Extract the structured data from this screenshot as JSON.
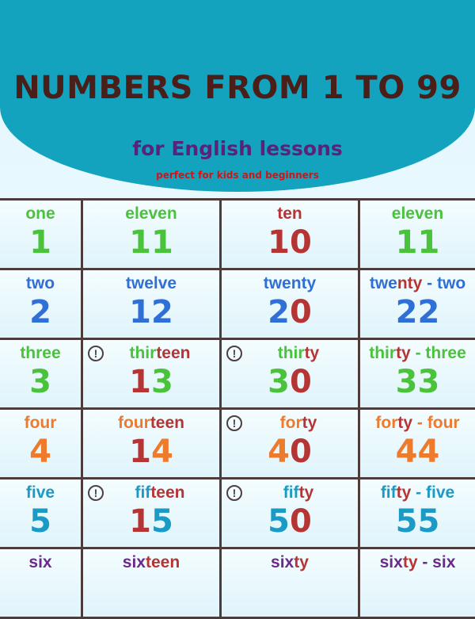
{
  "header": {
    "title": "NUMBERS FROM 1 TO 99",
    "subtitle": "for English lessons",
    "tagline": "perfect for kids and beginners"
  },
  "colors": {
    "banner": "#14a3bf",
    "b": "#2f6fd6",
    "g": "#4ac23c",
    "r": "#b53535",
    "o": "#ee7a2c",
    "t": "#1b9ac6",
    "p": "#6b2a8a",
    "warning_icon": "#4d4040"
  },
  "warning_icon": "exclamation-circle-icon",
  "rows": [
    [
      {
        "word": [
          [
            "one",
            "g"
          ]
        ],
        "num": [
          [
            "1",
            "g"
          ]
        ]
      },
      {
        "word": [
          [
            "eleven",
            "g"
          ]
        ],
        "num": [
          [
            "11",
            "g"
          ]
        ]
      },
      {
        "word": [
          [
            "ten",
            "r"
          ]
        ],
        "num": [
          [
            "1",
            "r"
          ],
          [
            "0",
            "r"
          ]
        ]
      },
      {
        "word": [
          [
            "eleven",
            "g"
          ]
        ],
        "num": [
          [
            "11",
            "g"
          ]
        ]
      }
    ],
    [
      {
        "word": [
          [
            "two",
            "b"
          ]
        ],
        "num": [
          [
            "2",
            "b"
          ]
        ]
      },
      {
        "word": [
          [
            "twelve",
            "b"
          ]
        ],
        "num": [
          [
            "12",
            "b"
          ]
        ]
      },
      {
        "word": [
          [
            "twenty",
            "b"
          ]
        ],
        "num": [
          [
            "2",
            "b"
          ],
          [
            "0",
            "r"
          ]
        ]
      },
      {
        "word": [
          [
            "twe",
            "b"
          ],
          [
            "nty",
            "r"
          ],
          [
            " - two",
            "b"
          ]
        ],
        "num": [
          [
            "22",
            "b"
          ]
        ]
      }
    ],
    [
      {
        "word": [
          [
            "three",
            "g"
          ]
        ],
        "num": [
          [
            "3",
            "g"
          ]
        ]
      },
      {
        "warn": true,
        "word": [
          [
            "thir",
            "g"
          ],
          [
            "teen",
            "r"
          ]
        ],
        "num": [
          [
            "1",
            "r"
          ],
          [
            "3",
            "g"
          ]
        ]
      },
      {
        "warn": true,
        "word": [
          [
            "thir",
            "g"
          ],
          [
            "ty",
            "r"
          ]
        ],
        "num": [
          [
            "3",
            "g"
          ],
          [
            "0",
            "r"
          ]
        ]
      },
      {
        "word": [
          [
            "thir",
            "g"
          ],
          [
            "ty",
            "r"
          ],
          [
            " - three",
            "g"
          ]
        ],
        "num": [
          [
            "33",
            "g"
          ]
        ]
      }
    ],
    [
      {
        "word": [
          [
            "four",
            "o"
          ]
        ],
        "num": [
          [
            "4",
            "o"
          ]
        ]
      },
      {
        "word": [
          [
            "four",
            "o"
          ],
          [
            "teen",
            "r"
          ]
        ],
        "num": [
          [
            "1",
            "r"
          ],
          [
            "4",
            "o"
          ]
        ]
      },
      {
        "warn": true,
        "word": [
          [
            "for",
            "o"
          ],
          [
            "ty",
            "r"
          ]
        ],
        "num": [
          [
            "4",
            "o"
          ],
          [
            "0",
            "r"
          ]
        ]
      },
      {
        "word": [
          [
            "for",
            "o"
          ],
          [
            "ty",
            "r"
          ],
          [
            " - four",
            "o"
          ]
        ],
        "num": [
          [
            "44",
            "o"
          ]
        ]
      }
    ],
    [
      {
        "word": [
          [
            "five",
            "t"
          ]
        ],
        "num": [
          [
            "5",
            "t"
          ]
        ]
      },
      {
        "warn": true,
        "word": [
          [
            "fif",
            "t"
          ],
          [
            "teen",
            "r"
          ]
        ],
        "num": [
          [
            "1",
            "r"
          ],
          [
            "5",
            "t"
          ]
        ]
      },
      {
        "warn": true,
        "word": [
          [
            "fif",
            "t"
          ],
          [
            "ty",
            "r"
          ]
        ],
        "num": [
          [
            "5",
            "t"
          ],
          [
            "0",
            "r"
          ]
        ]
      },
      {
        "word": [
          [
            "fif",
            "t"
          ],
          [
            "ty",
            "r"
          ],
          [
            " - five",
            "t"
          ]
        ],
        "num": [
          [
            "55",
            "t"
          ]
        ]
      }
    ],
    [
      {
        "word": [
          [
            "six",
            "p"
          ]
        ],
        "num": []
      },
      {
        "word": [
          [
            "six",
            "p"
          ],
          [
            "teen",
            "r"
          ]
        ],
        "num": []
      },
      {
        "word": [
          [
            "six",
            "p"
          ],
          [
            "ty",
            "r"
          ]
        ],
        "num": []
      },
      {
        "word": [
          [
            "six",
            "p"
          ],
          [
            "ty",
            "r"
          ],
          [
            " - six",
            "p"
          ]
        ],
        "num": []
      }
    ]
  ]
}
